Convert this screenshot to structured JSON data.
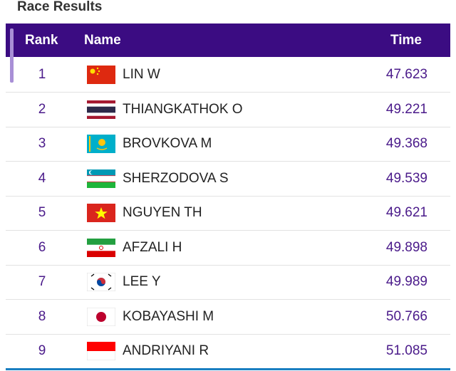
{
  "header": {
    "title": "Race Results"
  },
  "table": {
    "columns": [
      "Rank",
      "Name",
      "Time"
    ],
    "rows": [
      [
        "1",
        "LIN W",
        "47.623"
      ],
      [
        "2",
        "THIANGKATHOK O",
        "49.221"
      ],
      [
        "3",
        "BROVKOVA M",
        "49.368"
      ],
      [
        "4",
        "SHERZODOVA S",
        "49.539"
      ],
      [
        "5",
        "NGUYEN TH",
        "49.621"
      ],
      [
        "6",
        "AFZALI H",
        "49.898"
      ],
      [
        "7",
        "LEE Y",
        "49.989"
      ],
      [
        "8",
        "KOBAYASHI M",
        "50.766"
      ],
      [
        "9",
        "ANDRIYANI R",
        "51.085"
      ]
    ]
  }
}
